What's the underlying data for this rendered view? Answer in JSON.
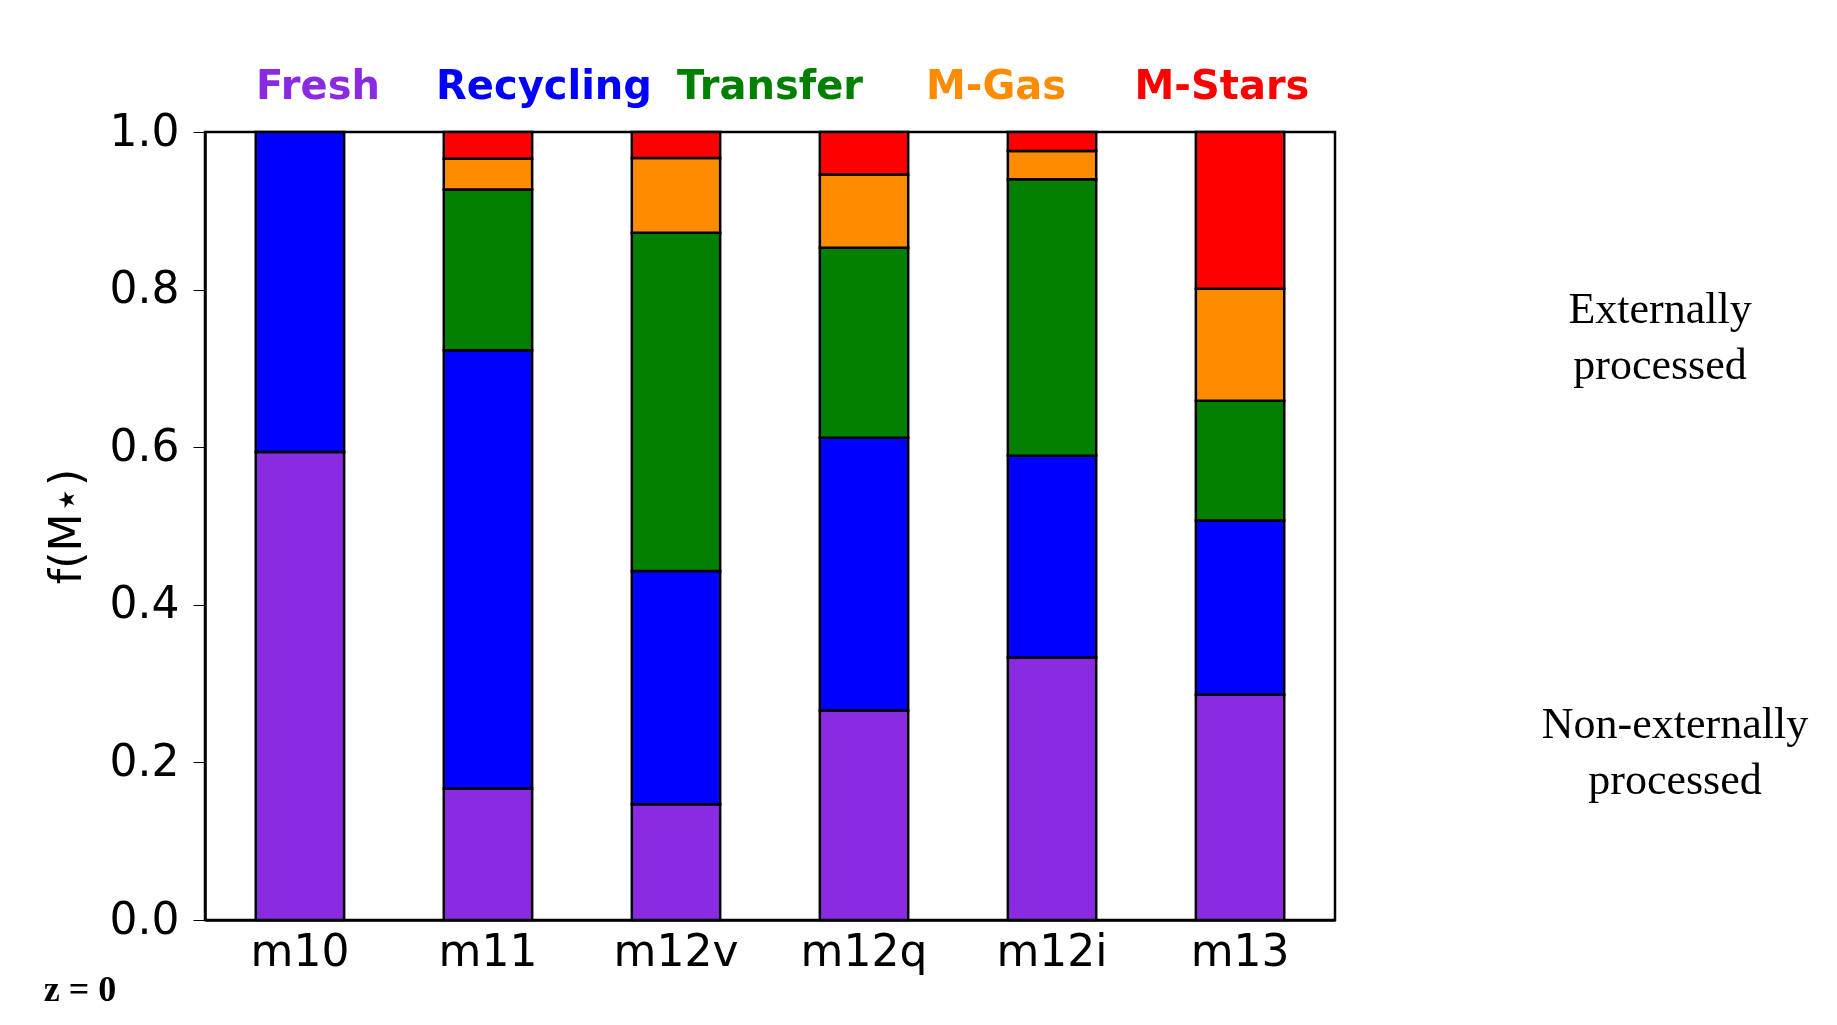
{
  "chart_data": {
    "type": "bar",
    "stacked": true,
    "ylabel": "f(M⋆)",
    "categories": [
      "m10",
      "m11",
      "m12v",
      "m12q",
      "m12i",
      "m13"
    ],
    "series": [
      {
        "name": "Fresh",
        "color": "#8a2be2",
        "values": [
          0.594,
          0.167,
          0.147,
          0.266,
          0.333,
          0.286
        ]
      },
      {
        "name": "Recycling",
        "color": "#0000ff",
        "values": [
          0.406,
          0.556,
          0.296,
          0.346,
          0.256,
          0.221
        ]
      },
      {
        "name": "Transfer",
        "color": "#007f00",
        "values": [
          null,
          0.204,
          0.429,
          0.241,
          0.351,
          0.152
        ]
      },
      {
        "name": "M-Gas",
        "color": "#ff8c00",
        "values": [
          null,
          0.039,
          0.095,
          0.093,
          0.036,
          0.142
        ]
      },
      {
        "name": "M-Stars",
        "color": "#ff0000",
        "values": [
          null,
          0.034,
          0.033,
          0.054,
          0.024,
          0.199
        ]
      }
    ],
    "ylim": [
      0,
      1
    ],
    "yticks": [
      {
        "value": 0,
        "label": "0.0"
      },
      {
        "value": 0.2,
        "label": "0.2"
      },
      {
        "value": 0.4,
        "label": "0.4"
      },
      {
        "value": 0.6,
        "label": "0.6"
      },
      {
        "value": 0.8,
        "label": "0.8"
      },
      {
        "value": 1,
        "label": "1.0"
      }
    ],
    "grid": false,
    "legend": "top",
    "annotations": [
      "Externally processed",
      "Non-externally processed",
      "z = 0"
    ]
  }
}
